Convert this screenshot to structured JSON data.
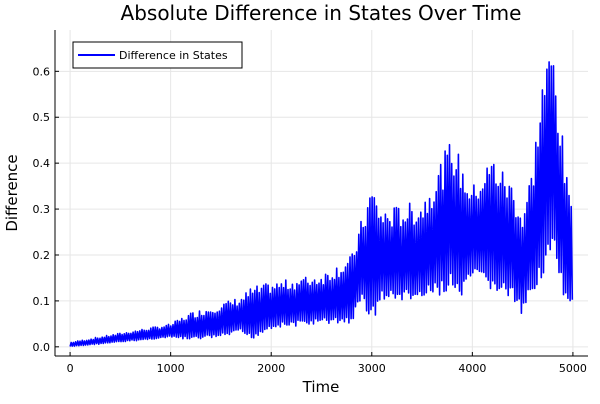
{
  "chart_data": {
    "type": "line",
    "title": "Absolute Difference in States Over Time",
    "xlabel": "Time",
    "ylabel": "Difference",
    "xlim": [
      -150,
      5150
    ],
    "ylim": [
      -0.02,
      0.69
    ],
    "xticks": [
      0,
      1000,
      2000,
      3000,
      4000,
      5000
    ],
    "xtick_labels": [
      "0",
      "1000",
      "2000",
      "3000",
      "4000",
      "5000"
    ],
    "yticks": [
      0.0,
      0.1,
      0.2,
      0.3,
      0.4,
      0.5,
      0.6
    ],
    "ytick_labels": [
      "0.0",
      "0.1",
      "0.2",
      "0.3",
      "0.4",
      "0.5",
      "0.6"
    ],
    "grid": true,
    "legend": {
      "placement": "top-left",
      "entries": [
        "Difference in States"
      ]
    },
    "series": [
      {
        "name": "Difference in States",
        "color": "#0000ff",
        "oscillation_period": 22,
        "envelope_t": [
          0,
          500,
          1000,
          1200,
          1500,
          1700,
          1800,
          2000,
          2500,
          2800,
          2900,
          3000,
          3100,
          3500,
          3800,
          3900,
          4000,
          4200,
          4400,
          4500,
          4600,
          4700,
          4800,
          4900,
          4950,
          5000
        ],
        "envelope_upper": [
          0.01,
          0.03,
          0.05,
          0.075,
          0.095,
          0.11,
          0.13,
          0.14,
          0.16,
          0.2,
          0.28,
          0.36,
          0.3,
          0.32,
          0.46,
          0.4,
          0.35,
          0.42,
          0.36,
          0.3,
          0.4,
          0.6,
          0.67,
          0.45,
          0.35,
          0.34
        ],
        "envelope_lower": [
          0.0,
          0.01,
          0.02,
          0.015,
          0.02,
          0.03,
          0.015,
          0.04,
          0.05,
          0.05,
          0.1,
          0.05,
          0.1,
          0.1,
          0.12,
          0.1,
          0.15,
          0.12,
          0.1,
          0.06,
          0.12,
          0.15,
          0.2,
          0.1,
          0.08,
          0.1
        ]
      }
    ]
  }
}
